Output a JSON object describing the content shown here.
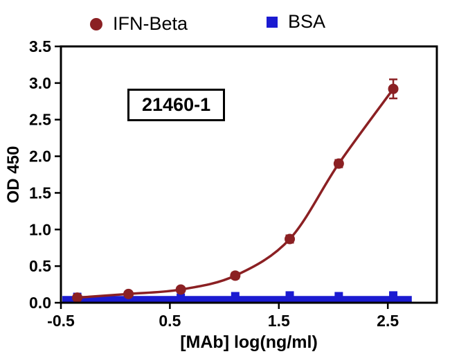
{
  "chart_data": {
    "type": "scatter",
    "title": "",
    "annotation": "21460-1",
    "xlabel": "[MAb] log(ng/ml)",
    "ylabel": "OD 450",
    "xlim": [
      -0.5,
      2.95
    ],
    "ylim": [
      0,
      3.5
    ],
    "x_ticks": [
      -0.5,
      0.5,
      1.5,
      2.5
    ],
    "x_tick_labels": [
      "-0.5",
      "0.5",
      "1.5",
      "2.5"
    ],
    "y_ticks": [
      0,
      0.5,
      1,
      1.5,
      2,
      2.5,
      3,
      3.5
    ],
    "y_tick_labels": [
      "0.0",
      "0.5",
      "1.0",
      "1.5",
      "2.0",
      "2.5",
      "3.0",
      "3.5"
    ],
    "grid": false,
    "legend_position": "top",
    "series": [
      {
        "name": "IFN-Beta",
        "marker": "circle",
        "color": "#8b2023",
        "x": [
          -0.35,
          0.12,
          0.6,
          1.1,
          1.6,
          2.05,
          2.55
        ],
        "y": [
          0.07,
          0.12,
          0.18,
          0.37,
          0.87,
          1.9,
          2.92
        ],
        "yerr": [
          0.02,
          0.02,
          0.03,
          0.04,
          0.05,
          0.05,
          0.13
        ]
      },
      {
        "name": "BSA",
        "marker": "square",
        "color": "#1b1bd1",
        "x": [
          -0.35,
          0.12,
          0.6,
          1.1,
          1.6,
          2.05,
          2.55
        ],
        "y": [
          0.08,
          0.06,
          0.07,
          0.09,
          0.1,
          0.09,
          0.1
        ],
        "line_y": 0.05,
        "line_x": [
          -0.5,
          2.72
        ]
      }
    ]
  }
}
